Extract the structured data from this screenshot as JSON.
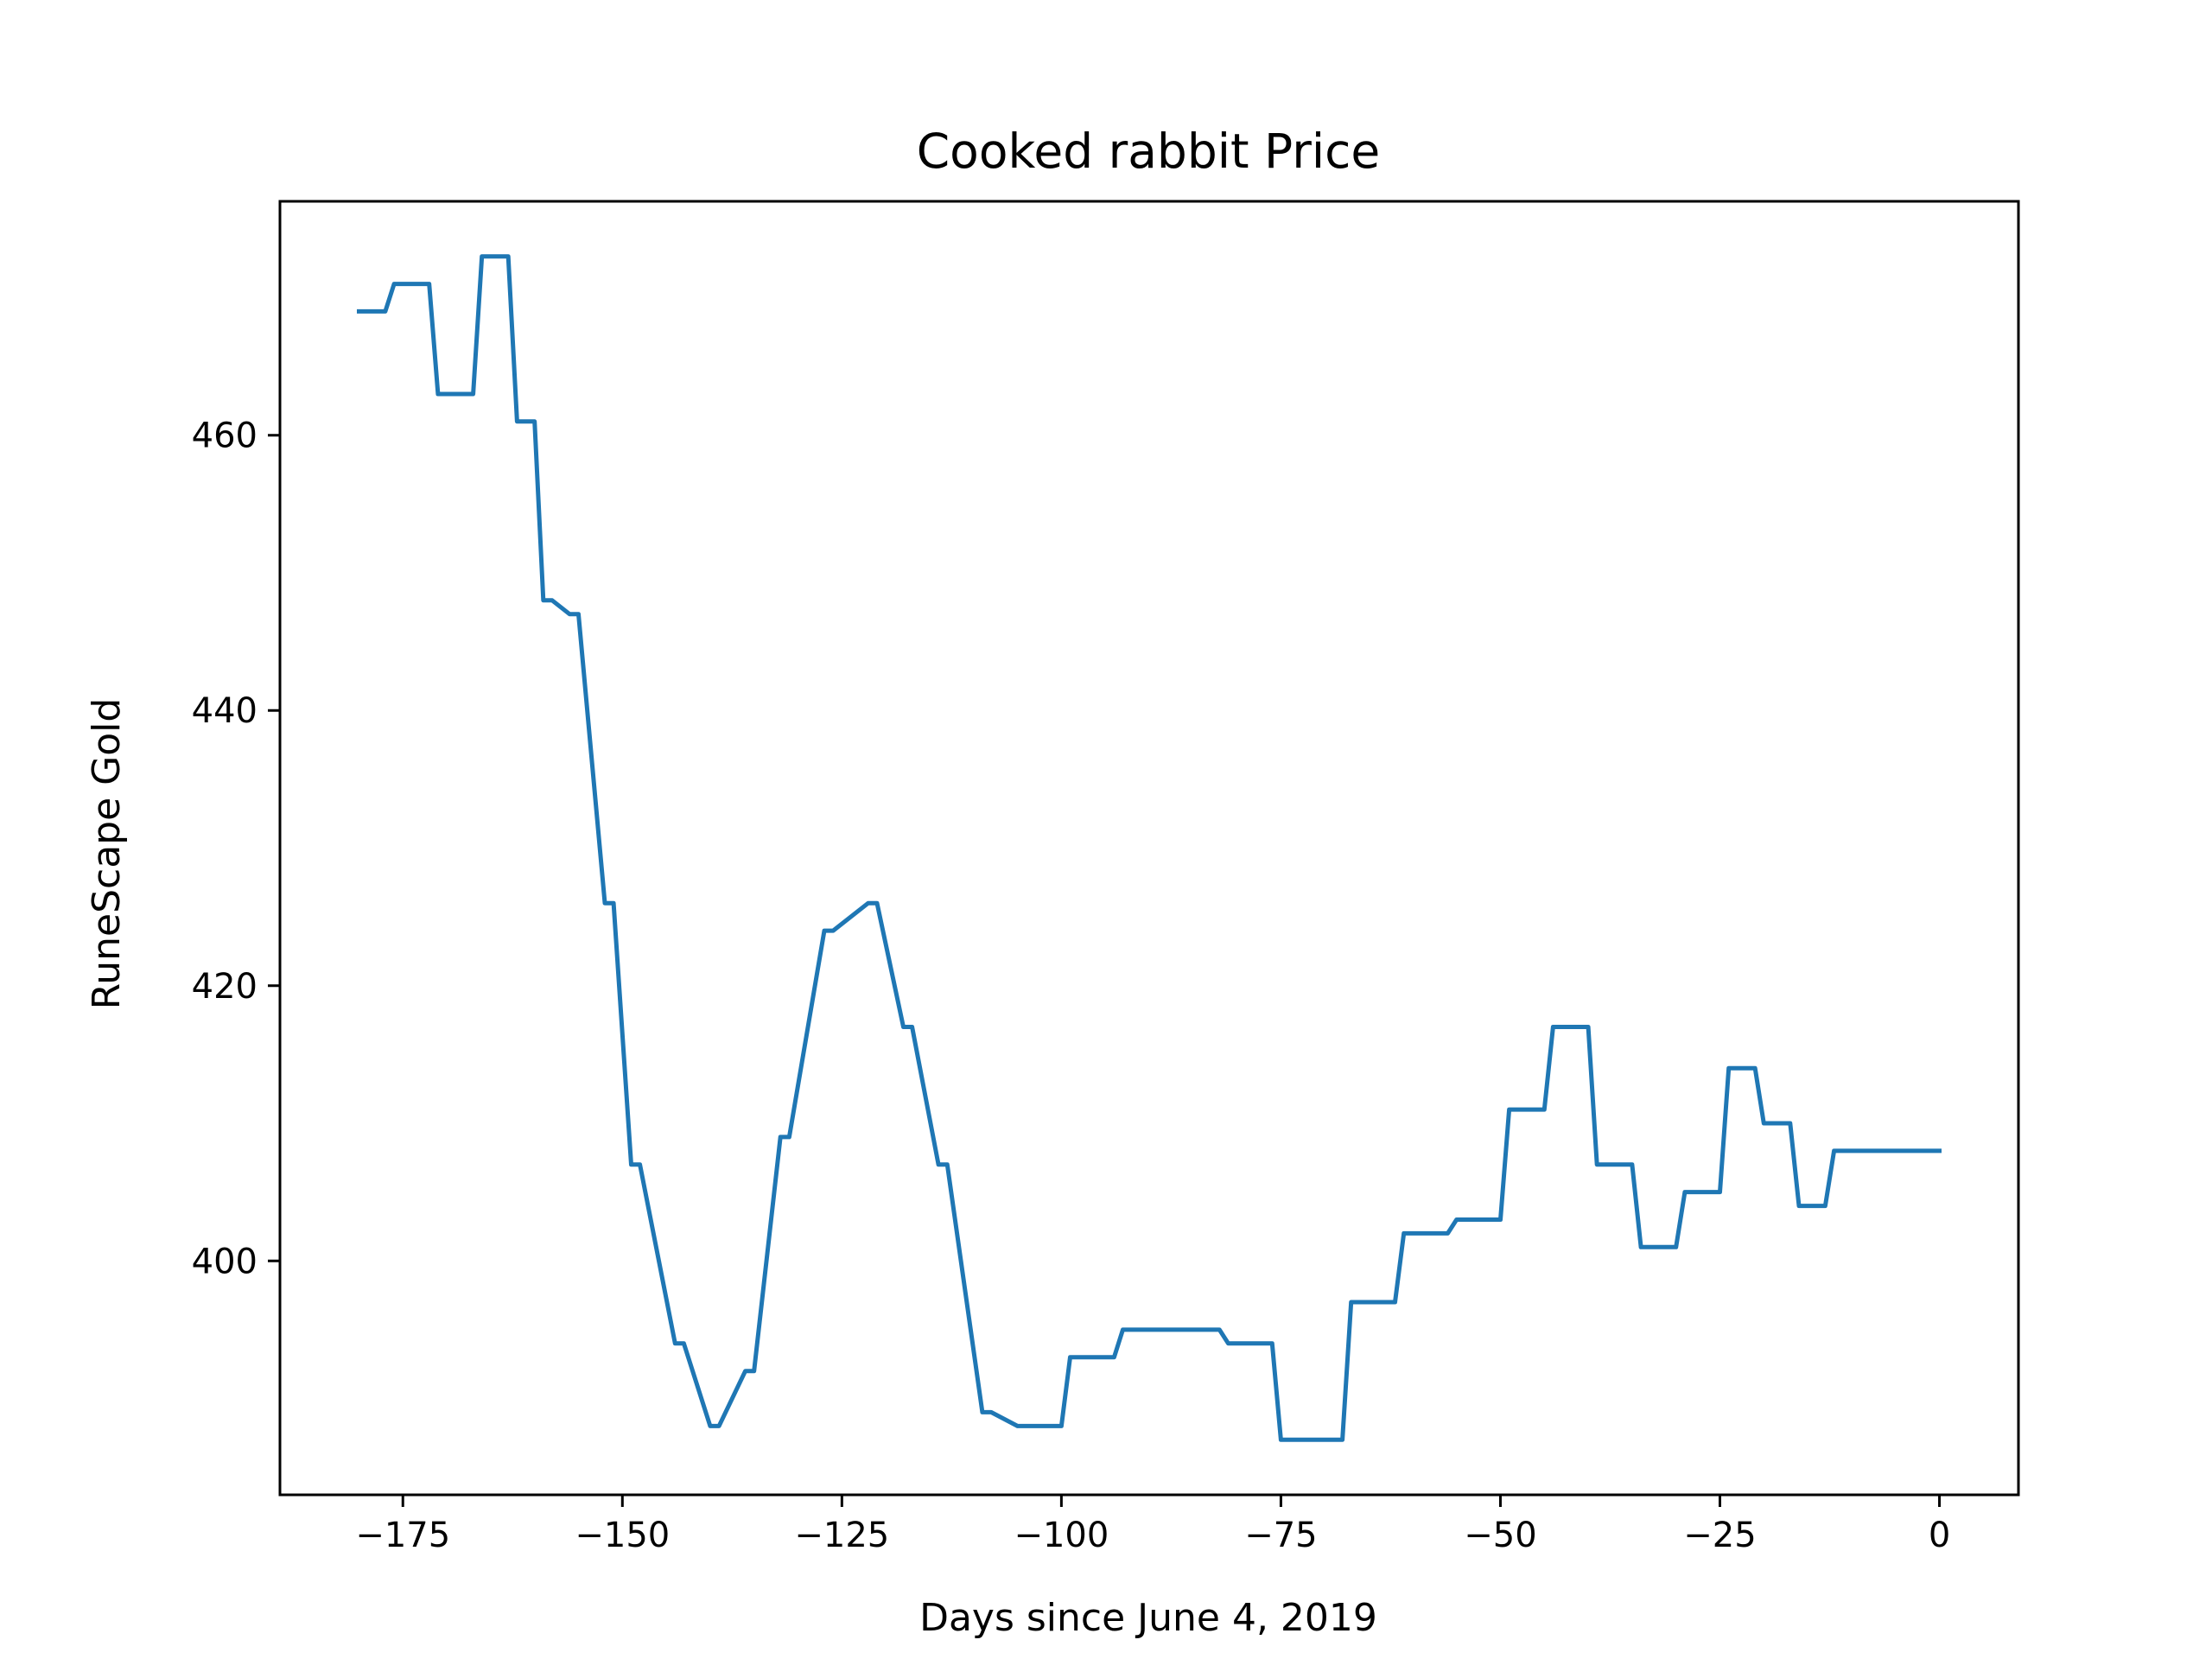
{
  "chart_data": {
    "type": "line",
    "title": "Cooked rabbit Price",
    "xlabel": "Days since June 4, 2019",
    "ylabel": "RuneScape Gold",
    "xlim": [
      -189,
      9
    ],
    "ylim": [
      383,
      477
    ],
    "xticks": [
      -175,
      -150,
      -125,
      -100,
      -75,
      -50,
      -25,
      0
    ],
    "xtick_labels": [
      "−175",
      "−150",
      "−125",
      "−100",
      "−75",
      "−50",
      "−25",
      "0"
    ],
    "yticks": [
      400,
      420,
      440,
      460
    ],
    "ytick_labels": [
      "400",
      "420",
      "440",
      "460"
    ],
    "grid": false,
    "legend": "none",
    "series": [
      {
        "color": "#1f77b4",
        "x": [
          -180,
          -177,
          -176,
          -172,
          -171,
          -167,
          -166,
          -163,
          -162,
          -160,
          -159,
          -158,
          -156,
          -155,
          -152,
          -151,
          -149,
          -148,
          -144,
          -143,
          -140,
          -139,
          -136,
          -135,
          -132,
          -131,
          -127,
          -126,
          -122,
          -121,
          -118,
          -117,
          -114,
          -113,
          -109,
          -108,
          -105,
          -104,
          -103,
          -100,
          -99,
          -94,
          -93,
          -87,
          -86,
          -82,
          -81,
          -76,
          -75,
          -68,
          -67,
          -62,
          -61,
          -56,
          -55,
          -50,
          -49,
          -45,
          -44,
          -40,
          -39,
          -35,
          -34,
          -30,
          -29,
          -25,
          -24,
          -21,
          -20,
          -17,
          -16,
          -13,
          -12,
          -8,
          -7,
          0
        ],
        "y": [
          469,
          469,
          471,
          471,
          463,
          463,
          473,
          473,
          461,
          461,
          448,
          448,
          447,
          447,
          426,
          426,
          407,
          407,
          394,
          394,
          388,
          388,
          392,
          392,
          409,
          409,
          424,
          424,
          426,
          426,
          417,
          417,
          407,
          407,
          389,
          389,
          388,
          388,
          388,
          388,
          393,
          393,
          395,
          395,
          395,
          395,
          394,
          394,
          387,
          387,
          397,
          397,
          402,
          402,
          403,
          403,
          411,
          411,
          417,
          417,
          407,
          407,
          401,
          401,
          405,
          405,
          414,
          414,
          410,
          410,
          404,
          404,
          408,
          408,
          408,
          408
        ]
      }
    ]
  }
}
